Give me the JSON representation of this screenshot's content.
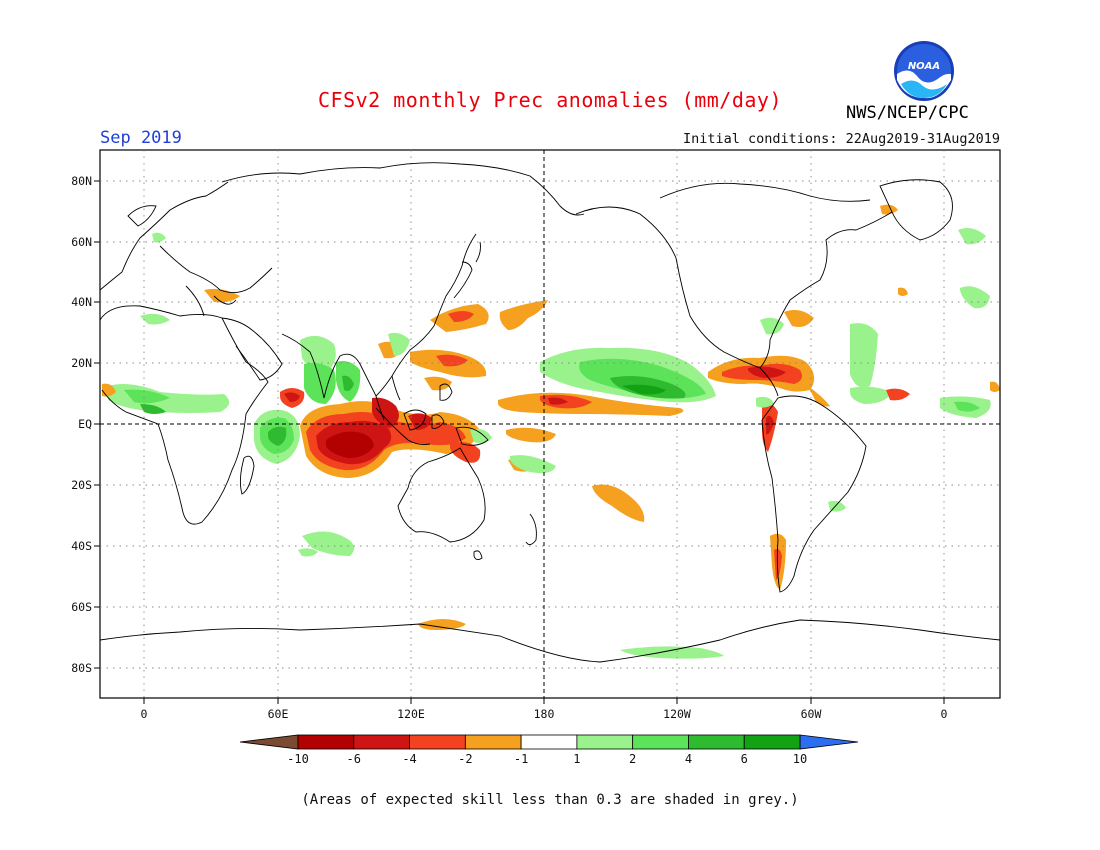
{
  "header": {
    "title": "CFSv2 monthly Prec anomalies (mm/day)",
    "month": "Sep 2019",
    "initial_conditions": "Initial conditions: 22Aug2019-31Aug2019",
    "agency": "NWS/NCEP/CPC",
    "logo_text": "NOAA"
  },
  "map": {
    "projection": "equirectangular",
    "lon_range": [
      -20,
      382
    ],
    "lat_range": [
      -90,
      90
    ],
    "y_ticks": [
      "80N",
      "60N",
      "40N",
      "20N",
      "EQ",
      "20S",
      "40S",
      "60S",
      "80S"
    ],
    "x_ticks": [
      "0",
      "60E",
      "120E",
      "180",
      "120W",
      "60W",
      "0"
    ],
    "grid": "dotted",
    "reference_lines": [
      "equator",
      "dateline"
    ]
  },
  "colorbar": {
    "labels": [
      "-10",
      "-6",
      "-4",
      "-2",
      "-1",
      "1",
      "2",
      "4",
      "6",
      "10"
    ],
    "low_end_color": "#7a4a32",
    "high_end_color": "#2c6ef0",
    "bins": [
      {
        "color": "#b30000"
      },
      {
        "color": "#cf1414"
      },
      {
        "color": "#f2421f"
      },
      {
        "color": "#f5a01e"
      },
      {
        "color": "#ffffff"
      },
      {
        "color": "#9af28c"
      },
      {
        "color": "#5ce35a"
      },
      {
        "color": "#2fbb2f"
      },
      {
        "color": "#13a213"
      }
    ]
  },
  "footnote": "(Areas of expected skill less than 0.3 are shaded in grey.)",
  "colors": {
    "title": "#e8000b",
    "month": "#1f3fd8",
    "dry_strong": "#b30000",
    "dry_moderate": "#f2421f",
    "dry_weak": "#f5a01e",
    "wet_weak": "#9af28c",
    "wet_moderate": "#5ce35a",
    "wet_strong": "#13a213"
  }
}
